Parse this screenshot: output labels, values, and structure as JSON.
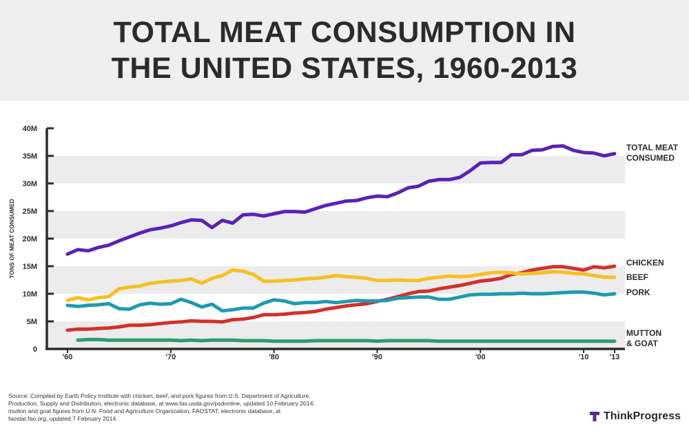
{
  "title_line1": "TOTAL MEAT CONSUMPTION IN",
  "title_line2": "THE UNITED STATES, 1960-2013",
  "footer": {
    "source": "Source: Compiled by Earth Policy Institute with chicken, beef, and pork figures from U.S. Department of Agriculture, Production, Supply and Distribution, electronic database, at www.fas.usda.gov/psdonline, updated 10 February 2014; mutton and goat figures from U.N. Food and Agriculture Organization, FAOSTAT, electronic database, at faostat.fao.org, updated 7 February 2014.",
    "brand": "ThinkProgress",
    "brand_color": "#5b2a86"
  },
  "chart_data": {
    "type": "line",
    "title": "TOTAL MEAT CONSUMPTION IN THE UNITED STATES, 1960-2013",
    "xlabel": "",
    "ylabel": "TONS OF MEAT CONSUMED",
    "ylim": [
      0,
      40000000
    ],
    "xlim": [
      1960,
      2013
    ],
    "yticks": [
      0,
      5000000,
      10000000,
      15000000,
      20000000,
      25000000,
      30000000,
      35000000,
      40000000
    ],
    "ytick_labels": [
      "0",
      "5M",
      "10M",
      "15M",
      "20M",
      "25M",
      "30M",
      "35M",
      "40M"
    ],
    "xticks": [
      1960,
      1970,
      1980,
      1990,
      2000,
      2010,
      2013
    ],
    "xtick_labels": [
      "'60",
      "'70",
      "'80",
      "'90",
      "'00",
      "'10",
      "'13"
    ],
    "x": [
      1960,
      1961,
      1962,
      1963,
      1964,
      1965,
      1966,
      1967,
      1968,
      1969,
      1970,
      1971,
      1972,
      1973,
      1974,
      1975,
      1976,
      1977,
      1978,
      1979,
      1980,
      1981,
      1982,
      1983,
      1984,
      1985,
      1986,
      1987,
      1988,
      1989,
      1990,
      1991,
      1992,
      1993,
      1994,
      1995,
      1996,
      1997,
      1998,
      1999,
      2000,
      2001,
      2002,
      2003,
      2004,
      2005,
      2006,
      2007,
      2008,
      2009,
      2010,
      2011,
      2012,
      2013
    ],
    "series": [
      {
        "name": "TOTAL MEAT CONSUMED",
        "color": "#5a22b4",
        "values": [
          17.2,
          18.0,
          17.8,
          18.4,
          18.8,
          19.6,
          20.3,
          21.0,
          21.6,
          21.9,
          22.3,
          22.9,
          23.4,
          23.3,
          22.0,
          23.3,
          22.8,
          24.3,
          24.4,
          24.1,
          24.5,
          24.9,
          24.9,
          24.8,
          25.4,
          26.0,
          26.4,
          26.8,
          26.9,
          27.4,
          27.7,
          27.6,
          28.3,
          29.2,
          29.5,
          30.4,
          30.7,
          30.7,
          31.1,
          32.3,
          33.7,
          33.8,
          33.8,
          35.2,
          35.2,
          36.0,
          36.1,
          36.7,
          36.8,
          36.0,
          35.6,
          35.5,
          35.0,
          35.4
        ]
      },
      {
        "name": "CHICKEN",
        "color": "#d0322a",
        "values": [
          3.4,
          3.6,
          3.6,
          3.7,
          3.8,
          4.0,
          4.3,
          4.3,
          4.4,
          4.6,
          4.8,
          4.9,
          5.1,
          5.0,
          5.0,
          4.9,
          5.3,
          5.4,
          5.7,
          6.2,
          6.2,
          6.3,
          6.5,
          6.6,
          6.8,
          7.2,
          7.5,
          7.8,
          8.0,
          8.2,
          8.6,
          9.0,
          9.5,
          10.0,
          10.4,
          10.5,
          10.9,
          11.2,
          11.5,
          11.9,
          12.3,
          12.5,
          12.8,
          13.5,
          13.8,
          14.3,
          14.6,
          14.9,
          14.9,
          14.6,
          14.3,
          14.9,
          14.7,
          15.0
        ]
      },
      {
        "name": "BEEF",
        "color": "#f6c022",
        "values": [
          8.8,
          9.3,
          8.9,
          9.3,
          9.5,
          10.9,
          11.2,
          11.4,
          11.9,
          12.1,
          12.3,
          12.4,
          12.7,
          11.9,
          12.8,
          13.3,
          14.3,
          14.1,
          13.5,
          12.3,
          12.3,
          12.4,
          12.5,
          12.7,
          12.8,
          13.0,
          13.3,
          13.1,
          13.0,
          12.8,
          12.4,
          12.4,
          12.5,
          12.4,
          12.4,
          12.8,
          13.0,
          13.2,
          13.1,
          13.2,
          13.5,
          13.8,
          13.9,
          13.8,
          13.6,
          13.7,
          13.8,
          14.0,
          13.9,
          13.7,
          13.6,
          13.3,
          13.0,
          13.0
        ]
      },
      {
        "name": "PORK",
        "color": "#1e9ab0",
        "values": [
          7.9,
          7.7,
          7.9,
          8.0,
          8.2,
          7.3,
          7.2,
          8.0,
          8.3,
          8.1,
          8.2,
          9.0,
          8.4,
          7.6,
          8.1,
          6.9,
          7.1,
          7.4,
          7.4,
          8.3,
          8.9,
          8.7,
          8.2,
          8.4,
          8.4,
          8.6,
          8.4,
          8.6,
          8.8,
          8.7,
          8.7,
          8.8,
          9.2,
          9.3,
          9.4,
          9.4,
          9.0,
          9.0,
          9.4,
          9.8,
          9.9,
          9.9,
          10.0,
          10.0,
          10.1,
          10.0,
          10.0,
          10.1,
          10.2,
          10.3,
          10.3,
          10.1,
          9.8,
          10.0
        ]
      },
      {
        "name": "MUTTON & GOAT",
        "color": "#2e9c70",
        "values": [
          null,
          1.6,
          1.7,
          1.7,
          1.6,
          1.6,
          1.6,
          1.6,
          1.6,
          1.6,
          1.6,
          1.5,
          1.6,
          1.5,
          1.6,
          1.6,
          1.6,
          1.5,
          1.5,
          1.5,
          1.4,
          1.4,
          1.4,
          1.4,
          1.5,
          1.5,
          1.5,
          1.5,
          1.5,
          1.5,
          1.4,
          1.5,
          1.5,
          1.5,
          1.5,
          1.5,
          1.4,
          1.4,
          1.4,
          1.4,
          1.4,
          1.4,
          1.4,
          1.4,
          1.4,
          1.4,
          1.4,
          1.4,
          1.4,
          1.4,
          1.4,
          1.4,
          1.4,
          1.4
        ]
      }
    ],
    "value_unit": "millions of tons",
    "series_labels": [
      {
        "series": "TOTAL MEAT CONSUMED",
        "lines": [
          "TOTAL MEAT",
          "CONSUMED"
        ]
      },
      {
        "series": "CHICKEN",
        "lines": [
          "CHICKEN"
        ]
      },
      {
        "series": "BEEF",
        "lines": [
          "BEEF"
        ]
      },
      {
        "series": "PORK",
        "lines": [
          "PORK"
        ]
      },
      {
        "series": "MUTTON & GOAT",
        "lines": [
          "MUTTON",
          "& GOAT"
        ]
      }
    ],
    "grid": "alternating horizontal bands",
    "legend": "right, inline labels"
  }
}
